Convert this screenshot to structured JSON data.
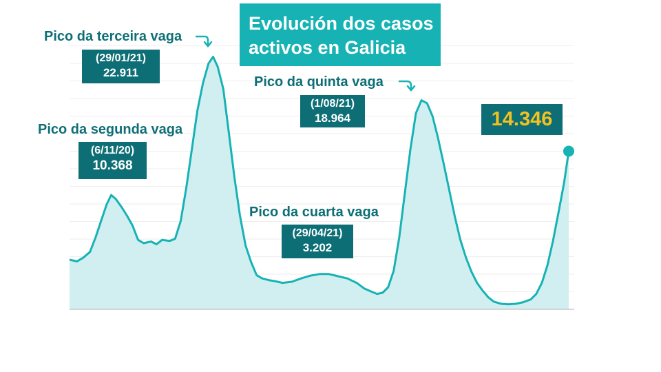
{
  "title": {
    "line1": "Evolución dos casos",
    "line2": "activos en Galicia"
  },
  "annotations": {
    "second_wave": {
      "label": "Pico da segunda vaga",
      "date": "(6/11/20)",
      "value": "10.368"
    },
    "third_wave": {
      "label": "Pico da terceira vaga",
      "date": "(29/01/21)",
      "value": "22.911"
    },
    "fourth_wave": {
      "label": "Pico da cuarta vaga",
      "date": "(29/04/21)",
      "value": "3.202"
    },
    "fifth_wave": {
      "label": "Pico da quinta vaga",
      "date": "(1/08/21)",
      "value": "18.964"
    },
    "current": {
      "value": "14.346"
    }
  },
  "colors": {
    "line": "#17b2b4",
    "area": "#d1eff0",
    "title_bg": "#17b2b4",
    "box_bg": "#0e6e76",
    "label_text": "#0d6f75",
    "current_value": "#f4c21f"
  },
  "chart_data": {
    "type": "area",
    "title": "Evolución dos casos activos en Galicia",
    "xlabel": "",
    "ylabel": "",
    "ylim": [
      0,
      23500
    ],
    "grid": true,
    "points": [
      [
        0,
        4500
      ],
      [
        8,
        4350
      ],
      [
        15,
        4700
      ],
      [
        22,
        5200
      ],
      [
        28,
        6500
      ],
      [
        34,
        8000
      ],
      [
        40,
        9500
      ],
      [
        45,
        10368
      ],
      [
        50,
        10000
      ],
      [
        56,
        9300
      ],
      [
        62,
        8500
      ],
      [
        68,
        7600
      ],
      [
        74,
        6300
      ],
      [
        80,
        6000
      ],
      [
        88,
        6150
      ],
      [
        94,
        5900
      ],
      [
        100,
        6300
      ],
      [
        108,
        6200
      ],
      [
        114,
        6400
      ],
      [
        120,
        8000
      ],
      [
        126,
        11000
      ],
      [
        132,
        14500
      ],
      [
        138,
        18000
      ],
      [
        144,
        20500
      ],
      [
        150,
        22300
      ],
      [
        155,
        22911
      ],
      [
        160,
        22000
      ],
      [
        166,
        20000
      ],
      [
        172,
        16000
      ],
      [
        178,
        12000
      ],
      [
        184,
        8500
      ],
      [
        190,
        5800
      ],
      [
        196,
        4300
      ],
      [
        202,
        3100
      ],
      [
        208,
        2800
      ],
      [
        215,
        2650
      ],
      [
        222,
        2550
      ],
      [
        230,
        2400
      ],
      [
        240,
        2500
      ],
      [
        250,
        2800
      ],
      [
        260,
        3050
      ],
      [
        270,
        3202
      ],
      [
        280,
        3200
      ],
      [
        290,
        3000
      ],
      [
        300,
        2800
      ],
      [
        310,
        2400
      ],
      [
        318,
        1900
      ],
      [
        326,
        1600
      ],
      [
        332,
        1400
      ],
      [
        338,
        1500
      ],
      [
        344,
        2000
      ],
      [
        350,
        3500
      ],
      [
        356,
        6500
      ],
      [
        362,
        10500
      ],
      [
        368,
        14500
      ],
      [
        374,
        17800
      ],
      [
        380,
        18964
      ],
      [
        386,
        18700
      ],
      [
        392,
        17500
      ],
      [
        398,
        15500
      ],
      [
        404,
        13200
      ],
      [
        410,
        10800
      ],
      [
        416,
        8400
      ],
      [
        422,
        6300
      ],
      [
        428,
        4700
      ],
      [
        434,
        3400
      ],
      [
        440,
        2400
      ],
      [
        446,
        1700
      ],
      [
        452,
        1100
      ],
      [
        458,
        700
      ],
      [
        466,
        500
      ],
      [
        474,
        450
      ],
      [
        482,
        500
      ],
      [
        490,
        650
      ],
      [
        498,
        900
      ],
      [
        504,
        1400
      ],
      [
        510,
        2400
      ],
      [
        516,
        4000
      ],
      [
        522,
        6200
      ],
      [
        528,
        8800
      ],
      [
        534,
        11500
      ],
      [
        539,
        14346
      ]
    ],
    "peaks": [
      {
        "label": "Pico da segunda vaga",
        "date": "6/11/20",
        "value": 10368
      },
      {
        "label": "Pico da terceira vaga",
        "date": "29/01/21",
        "value": 22911
      },
      {
        "label": "Pico da cuarta vaga",
        "date": "29/04/21",
        "value": 3202
      },
      {
        "label": "Pico da quinta vaga",
        "date": "1/08/21",
        "value": 18964
      }
    ],
    "latest": {
      "value": 14346
    }
  }
}
